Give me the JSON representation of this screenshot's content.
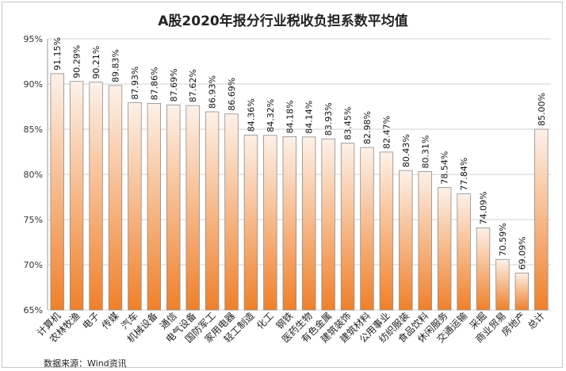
{
  "chart_data": {
    "type": "bar",
    "title": "A股2020年报分行业税收负担系数平均值",
    "source": "数据来源：Wind资讯",
    "categories": [
      "计算机",
      "农林牧渔",
      "电子",
      "传媒",
      "汽车",
      "机械设备",
      "通信",
      "电气设备",
      "国防军工",
      "家用电器",
      "轻工制造",
      "化工",
      "钢铁",
      "医药生物",
      "有色金属",
      "建筑装饰",
      "建筑材料",
      "公用事业",
      "纺织服装",
      "食品饮料",
      "休闲服务",
      "交通运输",
      "采掘",
      "商业贸易",
      "房地产",
      "总计"
    ],
    "values": [
      91.15,
      90.29,
      90.21,
      89.83,
      87.93,
      87.86,
      87.69,
      87.62,
      86.93,
      86.69,
      84.36,
      84.32,
      84.18,
      84.14,
      83.93,
      83.45,
      82.98,
      82.47,
      80.43,
      80.31,
      78.54,
      77.84,
      74.09,
      70.59,
      69.09,
      85.0
    ],
    "value_labels": [
      "91.15%",
      "90.29%",
      "90.21%",
      "89.83%",
      "87.93%",
      "87.86%",
      "87.69%",
      "87.62%",
      "86.93%",
      "86.69%",
      "84.36%",
      "84.32%",
      "84.18%",
      "84.14%",
      "83.93%",
      "83.45%",
      "82.98%",
      "82.47%",
      "80.43%",
      "80.31%",
      "78.54%",
      "77.84%",
      "74.09%",
      "70.59%",
      "69.09%",
      "85.00%"
    ],
    "ylim": [
      65,
      95
    ],
    "yticks": [
      65,
      70,
      75,
      80,
      85,
      90,
      95
    ],
    "ytick_labels": [
      "65%",
      "70%",
      "75%",
      "80%",
      "85%",
      "90%",
      "95%"
    ],
    "grid": true,
    "colors": {
      "bar_top": "#fdf1e8",
      "bar_bottom": "#f0802a",
      "bar_edge": "#8c8c8c",
      "grid": "#d0d0d0"
    }
  }
}
